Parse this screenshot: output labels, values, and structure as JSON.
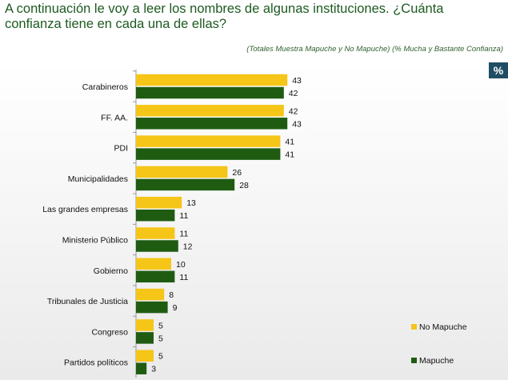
{
  "header": {
    "title": "A continuación le voy a leer los nombres de algunas instituciones. ¿Cuánta confianza tiene en cada una de ellas?",
    "subtitle": "(Totales Muestra Mapuche y No Mapuche) (% Mucha y Bastante Confianza)",
    "badge": "%"
  },
  "chart_data": {
    "type": "bar",
    "orientation": "horizontal",
    "categories": [
      "Carabineros",
      "FF. AA.",
      "PDI",
      "Municipalidades",
      "Las grandes empresas",
      "Ministerio Público",
      "Gobierno",
      "Tribunales de Justicia",
      "Congreso",
      "Partidos políticos"
    ],
    "series": [
      {
        "name": "No Mapuche",
        "values": [
          43,
          42,
          41,
          26,
          13,
          11,
          10,
          8,
          5,
          5
        ],
        "color": "#f5c518"
      },
      {
        "name": "Mapuche",
        "values": [
          42,
          43,
          41,
          28,
          11,
          12,
          11,
          9,
          5,
          3
        ],
        "color": "#1f5c12"
      }
    ],
    "xlim": [
      0,
      50
    ],
    "legend_position": "bottom-right",
    "grid": false,
    "title": "",
    "xlabel": "",
    "ylabel": ""
  }
}
